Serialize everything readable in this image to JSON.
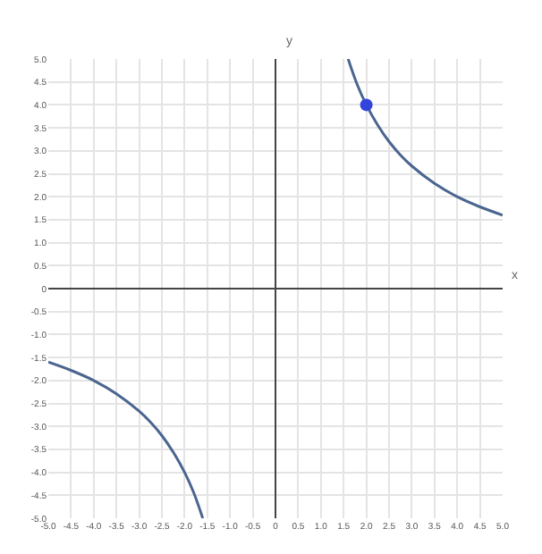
{
  "chart_data": {
    "type": "line",
    "xlabel": "x",
    "ylabel": "y",
    "series": [
      {
        "color": "#4a6590",
        "x": [
          1.6,
          1.8,
          2,
          2.25,
          2.5,
          2.75,
          3,
          3.5,
          4,
          4.5,
          5
        ],
        "values": [
          5,
          4.44,
          4,
          3.56,
          3.2,
          2.91,
          2.67,
          2.29,
          2,
          1.78,
          1.6
        ]
      },
      {
        "color": "#4a6590",
        "x": [
          -5,
          -4.5,
          -4,
          -3.5,
          -3,
          -2.75,
          -2.5,
          -2.25,
          -2,
          -1.8,
          -1.6
        ],
        "values": [
          -1.6,
          -1.78,
          -2,
          -2.29,
          -2.67,
          -2.91,
          -3.2,
          -3.56,
          -4,
          -4.44,
          -5
        ]
      },
      {
        "type": "scatter",
        "marker": "circle",
        "color": "#3344dd",
        "x": [
          2
        ],
        "values": [
          4
        ]
      }
    ],
    "xlim": [
      -5,
      5
    ],
    "ylim": [
      -5,
      5
    ],
    "xticks": [
      {
        "value": -5,
        "label": "-5.0"
      },
      -4.5,
      {
        "value": -4,
        "label": "-4.0"
      },
      -3.5,
      {
        "value": -3,
        "label": "-3.0"
      },
      -2.5,
      {
        "value": -2,
        "label": "-2.0"
      },
      -1.5,
      {
        "value": -1,
        "label": "-1.0"
      },
      -0.5,
      0,
      0.5,
      {
        "value": 1,
        "label": "1.0"
      },
      1.5,
      {
        "value": 2,
        "label": "2.0"
      },
      2.5,
      {
        "value": 3,
        "label": "3.0"
      },
      3.5,
      {
        "value": 4,
        "label": "4.0"
      },
      4.5,
      {
        "value": 5,
        "label": "5.0"
      }
    ],
    "yticks": [
      {
        "value": -5,
        "label": "-5.0"
      },
      -4.5,
      {
        "value": -4,
        "label": "-4.0"
      },
      -3.5,
      {
        "value": -3,
        "label": "-3.0"
      },
      -2.5,
      {
        "value": -2,
        "label": "-2.0"
      },
      -1.5,
      {
        "value": -1,
        "label": "-1.0"
      },
      -0.5,
      0,
      0.5,
      {
        "value": 1,
        "label": "1.0"
      },
      1.5,
      {
        "value": 2,
        "label": "2.0"
      },
      2.5,
      {
        "value": 3,
        "label": "3.0"
      },
      3.5,
      {
        "value": 4,
        "label": "4.0"
      },
      4.5,
      {
        "value": 5,
        "label": "5.0"
      }
    ],
    "grid": true,
    "marker": "none",
    "line_style": "solid"
  }
}
